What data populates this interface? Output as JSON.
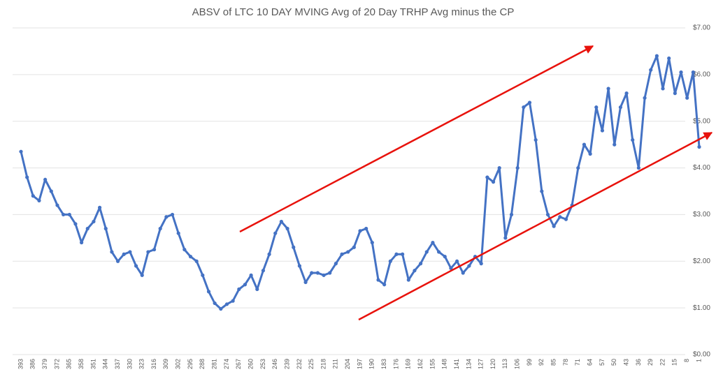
{
  "chart_data": {
    "type": "line",
    "title": "ABSV of LTC 10 DAY MVING Avg of 20 Day TRHP Avg minus the CP",
    "categories": [
      "393",
      null,
      "386",
      null,
      "379",
      null,
      "372",
      null,
      "365",
      null,
      "358",
      null,
      "351",
      null,
      "344",
      null,
      "337",
      null,
      "330",
      null,
      "323",
      null,
      "316",
      null,
      "309",
      null,
      "302",
      null,
      "295",
      null,
      "288",
      null,
      "281",
      null,
      "274",
      null,
      "267",
      null,
      "260",
      null,
      "253",
      null,
      "246",
      null,
      "239",
      null,
      "232",
      null,
      "225",
      null,
      "218",
      null,
      "211",
      null,
      "204",
      null,
      "197",
      null,
      "190",
      null,
      "183",
      null,
      "176",
      null,
      "169",
      null,
      "162",
      null,
      "155",
      null,
      "148",
      null,
      "141",
      null,
      "134",
      null,
      "127",
      null,
      "120",
      null,
      "113",
      null,
      "106",
      null,
      "99",
      null,
      "92",
      null,
      "85",
      null,
      "78",
      null,
      "71",
      null,
      "64",
      null,
      "57",
      null,
      "50",
      null,
      "43",
      null,
      "36",
      null,
      "29",
      null,
      "22",
      null,
      "15",
      null,
      "8",
      null,
      "1"
    ],
    "series": [
      {
        "name": "ABSV",
        "color": "#4472c4",
        "values": [
          4.35,
          3.8,
          3.4,
          3.3,
          3.75,
          3.5,
          3.2,
          3.0,
          3.0,
          2.8,
          2.4,
          2.7,
          2.85,
          3.15,
          2.7,
          2.2,
          2.0,
          2.15,
          2.2,
          1.9,
          1.7,
          2.2,
          2.25,
          2.7,
          2.95,
          3.0,
          2.6,
          2.25,
          2.1,
          2.0,
          1.7,
          1.35,
          1.1,
          0.98,
          1.08,
          1.15,
          1.4,
          1.5,
          1.7,
          1.4,
          1.8,
          2.15,
          2.6,
          2.85,
          2.7,
          2.3,
          1.9,
          1.55,
          1.75,
          1.75,
          1.7,
          1.75,
          1.95,
          2.15,
          2.2,
          2.3,
          2.65,
          2.7,
          2.4,
          1.6,
          1.5,
          2.0,
          2.15,
          2.15,
          1.6,
          1.8,
          1.95,
          2.2,
          2.4,
          2.2,
          2.1,
          1.85,
          2.0,
          1.75,
          1.9,
          2.1,
          1.95,
          3.8,
          3.7,
          4.0,
          2.5,
          3.0,
          4.0,
          5.3,
          5.4,
          4.6,
          3.5,
          3.0,
          2.75,
          2.95,
          2.9,
          3.2,
          4.0,
          4.5,
          4.3,
          5.3,
          4.8,
          5.7,
          4.5,
          5.3,
          5.6,
          4.6,
          4.0,
          5.5,
          6.1,
          6.4,
          5.7,
          6.35,
          5.6,
          6.05,
          5.5,
          6.05,
          4.45
        ]
      }
    ],
    "ylim": [
      0,
      7
    ],
    "yticks": [
      {
        "value": 0,
        "label": "$0.00"
      },
      {
        "value": 1,
        "label": "$1.00"
      },
      {
        "value": 2,
        "label": "$2.00"
      },
      {
        "value": 3,
        "label": "$3.00"
      },
      {
        "value": 4,
        "label": "$4.00"
      },
      {
        "value": 5,
        "label": "$5.00"
      },
      {
        "value": 6,
        "label": "$6.00"
      },
      {
        "value": 7,
        "label": "$7.00"
      }
    ],
    "grid": true
  }
}
